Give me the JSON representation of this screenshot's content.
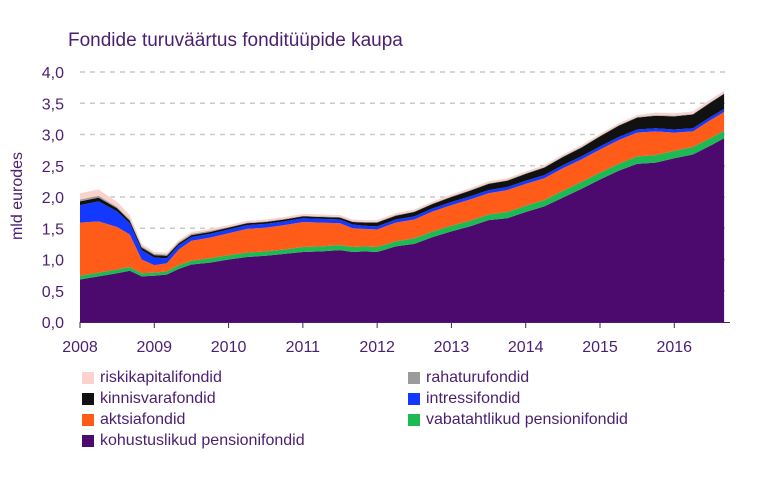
{
  "chart_data": {
    "type": "area",
    "title": "Fondide turuväärtus fonditüüpide kaupa",
    "ylabel": "mld eurodes",
    "xlabel": "",
    "ylim": [
      0,
      4
    ],
    "yticks": [
      "0,0",
      "0,5",
      "1,0",
      "1,5",
      "2,0",
      "2,5",
      "3,0",
      "3,5",
      "4,0"
    ],
    "xticks": [
      "2008",
      "2009",
      "2010",
      "2011",
      "2012",
      "2013",
      "2014",
      "2015",
      "2016"
    ],
    "xlim": [
      2008.0,
      2016.75
    ],
    "grid": "horizontal dashed",
    "legend_position": "bottom",
    "x": [
      2008.0,
      2008.25,
      2008.5,
      2008.67,
      2008.83,
      2009.0,
      2009.17,
      2009.33,
      2009.5,
      2009.75,
      2010.0,
      2010.25,
      2010.5,
      2010.75,
      2011.0,
      2011.25,
      2011.5,
      2011.67,
      2011.83,
      2012.0,
      2012.25,
      2012.5,
      2012.75,
      2013.0,
      2013.25,
      2013.5,
      2013.75,
      2014.0,
      2014.25,
      2014.5,
      2014.75,
      2015.0,
      2015.25,
      2015.5,
      2015.75,
      2016.0,
      2016.25,
      2016.5,
      2016.67
    ],
    "series": [
      {
        "name": "kohustuslikud pensionifondid",
        "color": "#4d0a6e",
        "values": [
          0.68,
          0.73,
          0.78,
          0.82,
          0.73,
          0.74,
          0.76,
          0.85,
          0.92,
          0.95,
          1.0,
          1.04,
          1.06,
          1.09,
          1.12,
          1.13,
          1.15,
          1.12,
          1.13,
          1.12,
          1.21,
          1.25,
          1.36,
          1.45,
          1.53,
          1.63,
          1.66,
          1.76,
          1.85,
          1.99,
          2.13,
          2.28,
          2.42,
          2.53,
          2.55,
          2.62,
          2.68,
          2.83,
          2.94
        ]
      },
      {
        "name": "vabatahtlikud pensionifondid",
        "color": "#1db954",
        "values": [
          0.06,
          0.06,
          0.06,
          0.06,
          0.05,
          0.05,
          0.05,
          0.06,
          0.06,
          0.07,
          0.07,
          0.07,
          0.07,
          0.07,
          0.08,
          0.08,
          0.08,
          0.08,
          0.08,
          0.08,
          0.08,
          0.09,
          0.09,
          0.09,
          0.09,
          0.09,
          0.1,
          0.1,
          0.1,
          0.11,
          0.11,
          0.11,
          0.11,
          0.12,
          0.12,
          0.12,
          0.12,
          0.12,
          0.12
        ]
      },
      {
        "name": "aktsiafondid",
        "color": "#ff5c1a",
        "values": [
          0.85,
          0.82,
          0.68,
          0.52,
          0.22,
          0.12,
          0.13,
          0.25,
          0.32,
          0.33,
          0.35,
          0.38,
          0.38,
          0.39,
          0.4,
          0.38,
          0.35,
          0.3,
          0.28,
          0.28,
          0.3,
          0.3,
          0.32,
          0.33,
          0.34,
          0.34,
          0.35,
          0.35,
          0.35,
          0.36,
          0.36,
          0.37,
          0.38,
          0.38,
          0.38,
          0.29,
          0.25,
          0.29,
          0.3
        ]
      },
      {
        "name": "intressifondid",
        "color": "#1338ff",
        "values": [
          0.28,
          0.32,
          0.25,
          0.18,
          0.15,
          0.12,
          0.08,
          0.07,
          0.06,
          0.06,
          0.06,
          0.06,
          0.06,
          0.06,
          0.06,
          0.06,
          0.06,
          0.06,
          0.05,
          0.05,
          0.05,
          0.05,
          0.05,
          0.05,
          0.05,
          0.05,
          0.05,
          0.05,
          0.05,
          0.05,
          0.05,
          0.05,
          0.05,
          0.05,
          0.05,
          0.05,
          0.05,
          0.05,
          0.05
        ]
      },
      {
        "name": "kinnisvarafondid",
        "color": "#111111",
        "values": [
          0.06,
          0.06,
          0.05,
          0.04,
          0.04,
          0.04,
          0.04,
          0.03,
          0.03,
          0.03,
          0.03,
          0.03,
          0.03,
          0.03,
          0.03,
          0.03,
          0.03,
          0.04,
          0.05,
          0.06,
          0.06,
          0.07,
          0.07,
          0.08,
          0.09,
          0.1,
          0.1,
          0.11,
          0.12,
          0.13,
          0.14,
          0.16,
          0.18,
          0.19,
          0.2,
          0.21,
          0.22,
          0.23,
          0.24
        ]
      },
      {
        "name": "rahaturufondid",
        "color": "#9b9b9b",
        "values": [
          0.03,
          0.03,
          0.02,
          0.02,
          0.02,
          0.02,
          0.02,
          0.02,
          0.02,
          0.02,
          0.01,
          0.01,
          0.01,
          0.01,
          0.01,
          0.01,
          0.01,
          0.01,
          0.01,
          0.01,
          0.01,
          0.01,
          0.01,
          0.01,
          0.01,
          0.01,
          0.01,
          0.01,
          0.01,
          0.01,
          0.01,
          0.01,
          0.01,
          0.01,
          0.01,
          0.01,
          0.01,
          0.01,
          0.01
        ]
      },
      {
        "name": "riskikapitalifondid",
        "color": "#f9d2cc",
        "values": [
          0.1,
          0.1,
          0.08,
          0.07,
          0.04,
          0.03,
          0.03,
          0.03,
          0.03,
          0.03,
          0.03,
          0.03,
          0.03,
          0.03,
          0.03,
          0.03,
          0.03,
          0.03,
          0.03,
          0.03,
          0.03,
          0.03,
          0.03,
          0.03,
          0.03,
          0.03,
          0.03,
          0.03,
          0.03,
          0.03,
          0.03,
          0.03,
          0.03,
          0.03,
          0.04,
          0.04,
          0.04,
          0.04,
          0.04
        ]
      }
    ]
  },
  "legend": [
    {
      "label": "riskikapitalifondid",
      "color": "#f9d2cc"
    },
    {
      "label": "rahaturufondid",
      "color": "#9b9b9b"
    },
    {
      "label": "kinnisvarafondid",
      "color": "#111111"
    },
    {
      "label": "intressifondid",
      "color": "#1338ff"
    },
    {
      "label": "aktsiafondid",
      "color": "#ff5c1a"
    },
    {
      "label": "vabatahtlikud pensionifondid",
      "color": "#1db954"
    },
    {
      "label": "kohustuslikud pensionifondid",
      "color": "#4d0a6e"
    }
  ]
}
